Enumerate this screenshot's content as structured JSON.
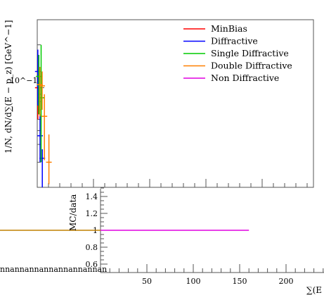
{
  "chart_data": [
    {
      "type": "line",
      "panel": "main",
      "ylabel": "1/N, dN/d∑(E − p_z) [GeV^−1]",
      "yscale": "log",
      "y_tick_labels": [
        "10^−1"
      ],
      "legend_placement": "top-right",
      "series": [
        {
          "name": "MinBias",
          "color": "#ff0000",
          "points": [
            {
              "x": 0.5,
              "y": 0.1,
              "yerr_lo": 0.06,
              "yerr_hi": 0.15
            }
          ]
        },
        {
          "name": "Diffractive",
          "color": "#0000ff",
          "points": [
            {
              "x": 0.5,
              "y": 0.13,
              "yerr_lo": 0.075,
              "yerr_hi": 0.185
            },
            {
              "x": 2.5,
              "y": 0.046,
              "yerr_lo": 0.03,
              "yerr_hi": 0.065
            },
            {
              "x": 4.5,
              "y": 0.032,
              "yerr_lo": 0.02,
              "yerr_hi": 0.037
            }
          ]
        },
        {
          "name": "Single Diffractive",
          "color": "#00cc00",
          "points": [
            {
              "x": 0.5,
              "y": 0.12,
              "yerr_lo": 0.065,
              "yerr_hi": 0.17
            },
            {
              "x": 2.5,
              "y": 0.085,
              "yerr_lo": 0.03,
              "yerr_hi": 0.2
            }
          ]
        },
        {
          "name": "Double Diffractive",
          "color": "#ff8000",
          "points": [
            {
              "x": 0.5,
              "y": 0.105,
              "yerr_lo": 0.063,
              "yerr_hi": 0.14
            },
            {
              "x": 2.5,
              "y": 0.103,
              "yerr_lo": 0.07,
              "yerr_hi": 0.13
            },
            {
              "x": 4.5,
              "y": 0.063,
              "yerr_lo": 0.031,
              "yerr_hi": 0.09
            },
            {
              "x": 8.5,
              "y": 0.03,
              "yerr_lo": 0.021,
              "yerr_hi": 0.047
            }
          ]
        },
        {
          "name": "Non Diffractive",
          "color": "#e000e0",
          "points": []
        }
      ]
    },
    {
      "type": "line",
      "panel": "ratio",
      "ylabel": "MC/data",
      "xlabel": "∑(E",
      "ylim": [
        0.6,
        1.5
      ],
      "y_tick_labels": [
        "0.6",
        "0.8",
        "1",
        "1.2",
        "1.4"
      ],
      "x_tick_labels": [
        "50",
        "100",
        "150",
        "200"
      ],
      "x_ticks": [
        50,
        100,
        150,
        200
      ],
      "xlim": [
        0,
        240
      ],
      "overflow_label": "nnannannannannannannan",
      "series": [
        {
          "name": "Double Diffractive",
          "color": "#c08000",
          "x": [
            -110,
            0
          ],
          "y": [
            1,
            1
          ]
        },
        {
          "name": "Non Diffractive",
          "color": "#e000e0",
          "x": [
            0,
            160
          ],
          "y": [
            1,
            1
          ]
        }
      ]
    }
  ]
}
